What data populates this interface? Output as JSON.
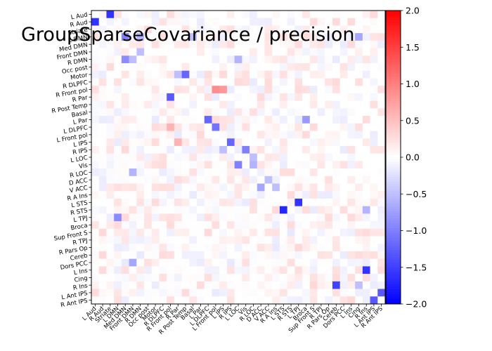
{
  "chart_data": {
    "type": "heatmap",
    "title": "GroupSparseCovariance / precision",
    "labels": [
      "L Aud",
      "R Aud",
      "Striate",
      "L DMN",
      "Med DMN",
      "Front DMN",
      "R DMN",
      "Occ post",
      "Motor",
      "R DLPFC",
      "R Front pol",
      "R Par",
      "R Post Temp",
      "Basal",
      "L Par",
      "L DLPFC",
      "L Front pol",
      "L IPS",
      "R IPS",
      "L LOC",
      "Vis",
      "R LOC",
      "D ACC",
      "V ACC",
      "R A Ins",
      "L STS",
      "R STS",
      "L TPJ",
      "Broca",
      "Sup Front S",
      "R TPJ",
      "R Pars Op",
      "Cereb",
      "Dors PCC",
      "L Ins",
      "Cing",
      "R Ins",
      "L Ant IPS",
      "R Ant IPS"
    ],
    "colorbar": {
      "min": -2.0,
      "max": 2.0,
      "ticks": [
        "2.0",
        "1.5",
        "1.0",
        "0.5",
        "0.0",
        "-0.5",
        "-1.0",
        "-1.5",
        "-2.0"
      ],
      "colormap": "bwr"
    },
    "strong_entries": [
      {
        "row": "L Aud",
        "col": "Striate",
        "value": -1.6
      },
      {
        "row": "R Aud",
        "col": "L Aud",
        "value": -1.6
      },
      {
        "row": "L DMN",
        "col": "Med DMN",
        "value": -1.0
      },
      {
        "row": "L DMN",
        "col": "R DMN",
        "value": -0.6
      },
      {
        "row": "L DMN",
        "col": "Cing",
        "value": -0.7
      },
      {
        "row": "Front DMN",
        "col": "R DMN",
        "value": -0.5
      },
      {
        "row": "R DMN",
        "col": "Med DMN",
        "value": -0.9
      },
      {
        "row": "R DMN",
        "col": "Front DMN",
        "value": -0.5
      },
      {
        "row": "R DMN",
        "col": "L LOC",
        "value": -0.6
      },
      {
        "row": "Motor",
        "col": "R Post Temp",
        "value": -1.2
      },
      {
        "row": "Motor",
        "col": "R Par",
        "value": -0.5
      },
      {
        "row": "R Front pol",
        "col": "L Front pol",
        "value": 0.9
      },
      {
        "row": "R Front pol",
        "col": "L IPS",
        "value": 0.8
      },
      {
        "row": "R Par",
        "col": "R Front pol",
        "value": -1.3
      },
      {
        "row": "L Par",
        "col": "L DLPFC",
        "value": -1.2
      },
      {
        "row": "L DLPFC",
        "col": "L Front pol",
        "value": -1.1
      },
      {
        "row": "L DLPFC",
        "col": "R Front pol",
        "value": 0.6
      },
      {
        "row": "L IPS",
        "col": "R Par",
        "value": 0.6
      },
      {
        "row": "L IPS",
        "col": "R IPS",
        "value": -1.2
      },
      {
        "row": "R IPS",
        "col": "L IPS",
        "value": -0.5
      },
      {
        "row": "R IPS",
        "col": "Vis",
        "value": -1.0
      },
      {
        "row": "L LOC",
        "col": "R LOC",
        "value": -0.5
      },
      {
        "row": "Vis",
        "col": "L LOC",
        "value": -1.0
      },
      {
        "row": "Vis",
        "col": "R LOC",
        "value": -0.6
      },
      {
        "row": "R LOC",
        "col": "Front DMN",
        "value": -0.6
      },
      {
        "row": "D ACC",
        "col": "V ACC",
        "value": -0.5
      },
      {
        "row": "V ACC",
        "col": "D ACC",
        "value": -0.7
      },
      {
        "row": "V ACC",
        "col": "R A Ins",
        "value": -0.5
      },
      {
        "row": "R STS",
        "col": "L STS",
        "value": -1.7
      },
      {
        "row": "L STS",
        "col": "L TPJ",
        "value": -1.6
      },
      {
        "row": "L TPJ",
        "col": "L DMN",
        "value": -0.9
      },
      {
        "row": "Dors PCC",
        "col": "Front DMN",
        "value": -0.7
      },
      {
        "row": "L Ins",
        "col": "R Ins",
        "value": -1.6
      },
      {
        "row": "R Ins",
        "col": "Cereb",
        "value": -1.5
      },
      {
        "row": "R Ins",
        "col": "Cing",
        "value": -0.5
      },
      {
        "row": "L Ant IPS",
        "col": "R Ant IPS",
        "value": -1.3
      },
      {
        "row": "R Ant IPS",
        "col": "L Ant IPS",
        "value": -1.3
      },
      {
        "row": "L Par",
        "col": "Broca",
        "value": -0.8
      },
      {
        "row": "L DMN",
        "col": "Basal",
        "value": -0.5
      },
      {
        "row": "R STS",
        "col": "R Ins",
        "value": -0.6
      }
    ]
  }
}
